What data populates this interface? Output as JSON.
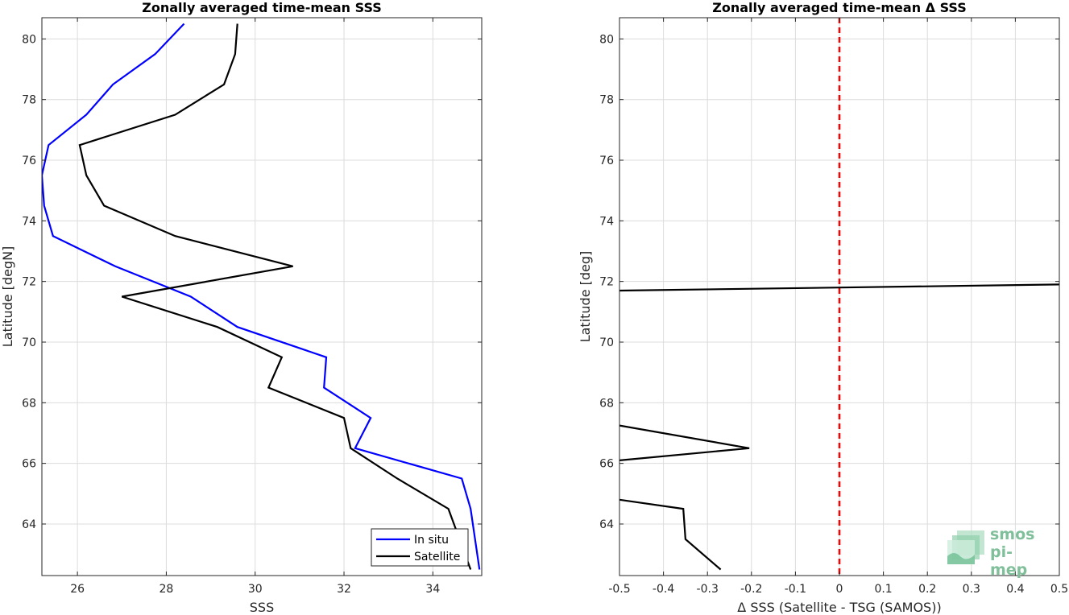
{
  "chart_data": [
    {
      "type": "line",
      "title": "Zonally averaged time-mean SSS",
      "xlabel": "SSS",
      "ylabel": "Latitude [degN]",
      "xlim": [
        25.2,
        35.1
      ],
      "ylim": [
        62.3,
        80.7
      ],
      "xticks": [
        26,
        28,
        30,
        32,
        34
      ],
      "yticks": [
        64,
        66,
        68,
        70,
        72,
        74,
        76,
        78,
        80
      ],
      "grid": true,
      "legend_position": "bottom-right",
      "series": [
        {
          "name": "In situ",
          "color": "#0000ff",
          "x": [
            28.4,
            27.75,
            26.8,
            26.2,
            25.35,
            25.2,
            25.25,
            25.45,
            26.85,
            28.55,
            29.6,
            31.6,
            31.55,
            32.6,
            32.25,
            34.65,
            34.85,
            34.95,
            35.05
          ],
          "y": [
            80.5,
            79.5,
            78.5,
            77.5,
            76.5,
            75.5,
            74.5,
            73.5,
            72.5,
            71.5,
            70.5,
            69.5,
            68.5,
            67.5,
            66.5,
            65.5,
            64.5,
            63.5,
            62.5
          ]
        },
        {
          "name": "Satellite",
          "color": "#000000",
          "x": [
            29.6,
            29.55,
            29.3,
            28.2,
            26.05,
            26.2,
            26.6,
            28.2,
            30.85,
            27.0,
            29.15,
            30.6,
            30.3,
            32.0,
            32.15,
            33.2,
            34.35,
            34.6,
            34.85
          ],
          "y": [
            80.5,
            79.5,
            78.5,
            77.5,
            76.5,
            75.5,
            74.5,
            73.5,
            72.5,
            71.5,
            70.5,
            69.5,
            68.5,
            67.5,
            66.5,
            65.5,
            64.5,
            63.5,
            62.5
          ]
        }
      ]
    },
    {
      "type": "line",
      "title": "Zonally averaged time-mean Δ SSS",
      "xlabel": "Δ SSS (Satellite - TSG (SAMOS))",
      "ylabel": "Latitude [deg]",
      "xlim": [
        -0.5,
        0.5
      ],
      "ylim": [
        62.3,
        80.7
      ],
      "xticks": [
        -0.5,
        -0.4,
        -0.3,
        -0.2,
        -0.1,
        0,
        0.1,
        0.2,
        0.3,
        0.4,
        0.5
      ],
      "yticks": [
        64,
        66,
        68,
        70,
        72,
        74,
        76,
        78,
        80
      ],
      "grid": true,
      "reference_line": {
        "x": 0,
        "color": "#ff0000",
        "style": "dashed"
      },
      "series": [
        {
          "color": "#000000",
          "x": [
            -0.27,
            -0.35,
            -0.355,
            -0.5
          ],
          "y": [
            62.5,
            63.5,
            64.5,
            64.8
          ]
        },
        {
          "color": "#000000",
          "x": [
            -0.5,
            -0.205,
            -0.5
          ],
          "y": [
            66.1,
            66.5,
            67.25
          ]
        },
        {
          "color": "#000000",
          "x": [
            -0.5,
            0.5
          ],
          "y": [
            71.7,
            71.9
          ]
        }
      ]
    }
  ],
  "logo": {
    "line1": "smos",
    "line2": "pi-mep"
  }
}
